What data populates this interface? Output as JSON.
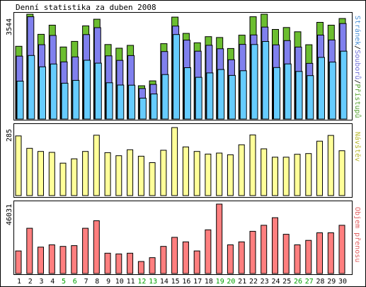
{
  "chart_data": [
    {
      "type": "bar",
      "title": "Denní statistika za duben 2008",
      "ymax_label": "3544",
      "legend": [
        {
          "text": "Stránek",
          "color": "#4a8fd6"
        },
        {
          "text": "/",
          "color": "#000000"
        },
        {
          "text": "Souborů",
          "color": "#6e6ed6"
        },
        {
          "text": "/",
          "color": "#000000"
        },
        {
          "text": "Přístupů",
          "color": "#55a030"
        }
      ],
      "series": [
        {
          "name": "Stránek",
          "fill": "#66ccff",
          "values": [
            1281,
            2147,
            1764,
            1861,
            1211,
            1308,
            1987,
            1890,
            1227,
            1150,
            1144,
            707,
            848,
            1505,
            2857,
            1735,
            1411,
            1558,
            1675,
            1475,
            1634,
            2519,
            2623,
            1740,
            1862,
            1608,
            1467,
            2084,
            1925,
            2294
          ]
        },
        {
          "name": "Souborů",
          "fill": "#8080ee",
          "values": [
            2126,
            3457,
            2511,
            2826,
            1932,
            2099,
            2854,
            3090,
            2137,
            1982,
            2145,
            1032,
            1172,
            2283,
            3141,
            2667,
            2294,
            2492,
            2375,
            2004,
            2524,
            2842,
            3108,
            2508,
            2652,
            2432,
            1881,
            2838,
            2673,
            3228
          ]
        },
        {
          "name": "Přístupů",
          "fill": "#6cbe30",
          "values": [
            2459,
            3544,
            2865,
            3172,
            2435,
            2624,
            3149,
            3373,
            2520,
            2395,
            2490,
            1125,
            1290,
            2549,
            3445,
            2896,
            2577,
            2784,
            2755,
            2385,
            2836,
            3457,
            3544,
            3028,
            3094,
            2950,
            2513,
            3268,
            3172,
            3397
          ]
        }
      ]
    },
    {
      "type": "bar",
      "ymax_label": "285",
      "legend": [
        {
          "text": "Návštěv",
          "color": "#b8b830"
        }
      ],
      "series": [
        {
          "name": "Návštěv",
          "fill": "#ffff99",
          "values": [
            250,
            198,
            185,
            181,
            136,
            154,
            185,
            253,
            180,
            167,
            192,
            165,
            138,
            190,
            285,
            204,
            185,
            174,
            178,
            171,
            213,
            254,
            196,
            161,
            161,
            173,
            176,
            228,
            252,
            188
          ]
        }
      ]
    },
    {
      "type": "bar",
      "ymax_label": "46031",
      "legend": [
        {
          "text": "Objem přenosu",
          "color": "#e06060"
        }
      ],
      "series": [
        {
          "name": "Objem přenosu",
          "fill": "#ff7f7f",
          "values": [
            15000,
            30000,
            17500,
            19000,
            18000,
            18500,
            30000,
            35000,
            13500,
            13000,
            13500,
            8000,
            10500,
            18000,
            24000,
            21000,
            15000,
            29000,
            46031,
            19000,
            21000,
            28000,
            32000,
            37000,
            26000,
            19000,
            22000,
            27000,
            27000,
            32000
          ]
        }
      ]
    }
  ],
  "x_axis": {
    "days": [
      "1",
      "2",
      "3",
      "4",
      "5",
      "6",
      "7",
      "8",
      "9",
      "10",
      "11",
      "12",
      "13",
      "14",
      "15",
      "16",
      "17",
      "18",
      "19",
      "20",
      "21",
      "22",
      "23",
      "24",
      "25",
      "26",
      "27",
      "28",
      "29",
      "30"
    ],
    "weekend_days": [
      5,
      6,
      12,
      13,
      19,
      20,
      26,
      27
    ],
    "weekday_color": "#000000",
    "weekend_color": "#00a000"
  }
}
